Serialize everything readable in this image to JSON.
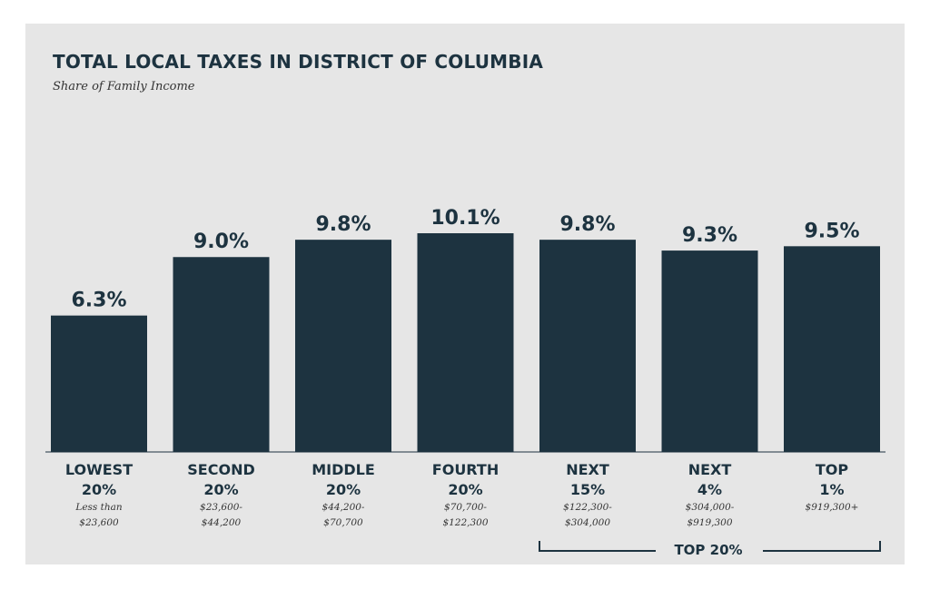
{
  "title": "TOTAL LOCAL TAXES IN DISTRICT OF COLUMBIA",
  "subtitle": "Share of Family Income",
  "chart_data": {
    "type": "bar",
    "title": "TOTAL LOCAL TAXES IN DISTRICT OF COLUMBIA",
    "subtitle": "Share of Family Income",
    "values": [
      6.3,
      9.0,
      9.8,
      10.1,
      9.8,
      9.3,
      9.5
    ],
    "value_labels": [
      "6.3%",
      "9.0%",
      "9.8%",
      "10.1%",
      "9.8%",
      "9.3%",
      "9.5%"
    ],
    "categories": [
      {
        "line1": "LOWEST",
        "line2": "20%",
        "range1": "Less than",
        "range2": "$23,600"
      },
      {
        "line1": "SECOND",
        "line2": "20%",
        "range1": "$23,600-",
        "range2": "$44,200"
      },
      {
        "line1": "MIDDLE",
        "line2": "20%",
        "range1": "$44,200-",
        "range2": "$70,700"
      },
      {
        "line1": "FOURTH",
        "line2": "20%",
        "range1": "$70,700-",
        "range2": "$122,300"
      },
      {
        "line1": "NEXT",
        "line2": "15%",
        "range1": "$122,300-",
        "range2": "$304,000"
      },
      {
        "line1": "NEXT",
        "line2": "4%",
        "range1": "$304,000-",
        "range2": "$919,300"
      },
      {
        "line1": "TOP",
        "line2": "1%",
        "range1": "$919,300+",
        "range2": ""
      }
    ],
    "group_bracket": {
      "label": "TOP 20%",
      "from_index": 4,
      "to_index": 6
    },
    "ylim": [
      0,
      10.1
    ],
    "grid": false,
    "legend": "none",
    "bar_color": "#1d3340"
  }
}
